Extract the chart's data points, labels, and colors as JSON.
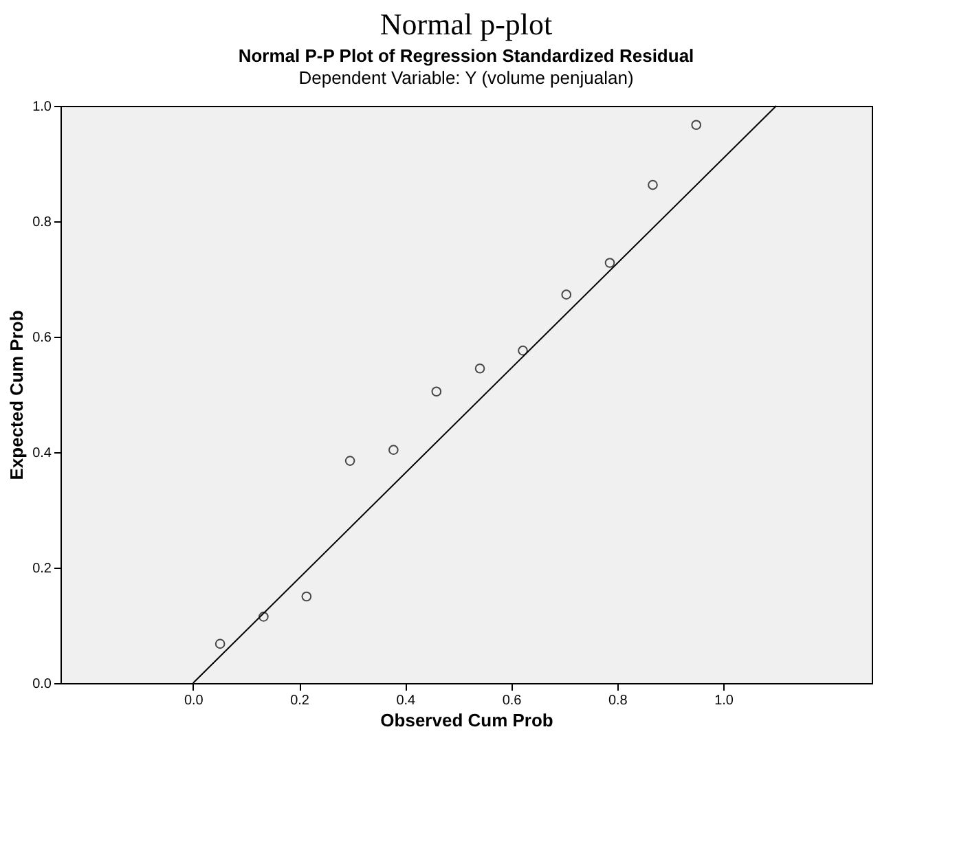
{
  "chart_data": {
    "type": "scatter",
    "title": "Normal P-P Plot of Regression Standardized Residual",
    "subtitle": "Dependent Variable: Y (volume penjualan)",
    "annotations": [
      "Normal p-plot"
    ],
    "xlabel": "Observed Cum Prob",
    "ylabel": "Expected Cum Prob",
    "marker": "circle",
    "grid": false,
    "series": [
      {
        "color": "#000000",
        "x": [
          0.051,
          0.133,
          0.214,
          0.296,
          0.378,
          0.459,
          0.541,
          0.622,
          0.704,
          0.786,
          0.867,
          0.949
        ],
        "values": [
          0.068,
          0.115,
          0.15,
          0.385,
          0.404,
          0.505,
          0.545,
          0.576,
          0.673,
          0.728,
          0.863,
          0.967
        ]
      },
      {
        "type": "line",
        "marker": "none",
        "line_style": "solid",
        "color": "#000000",
        "x": [
          0.0,
          1.1
        ],
        "values": [
          0.0,
          1.0
        ]
      }
    ],
    "xlim": [
      -0.25,
      1.28
    ],
    "ylim": [
      0.0,
      1.0
    ],
    "xticks": [
      {
        "value": 0,
        "label": "0.0"
      },
      {
        "value": 0.2,
        "label": "0.2"
      },
      {
        "value": 0.4,
        "label": "0.4"
      },
      {
        "value": 0.6,
        "label": "0.6"
      },
      {
        "value": 0.8,
        "label": "0.8"
      },
      {
        "value": 1,
        "label": "1.0"
      }
    ],
    "yticks": [
      {
        "value": 0,
        "label": "0.0"
      },
      {
        "value": 0.2,
        "label": "0.2"
      },
      {
        "value": 0.4,
        "label": "0.4"
      },
      {
        "value": 0.6,
        "label": "0.6"
      },
      {
        "value": 0.8,
        "label": "0.8"
      },
      {
        "value": 1,
        "label": "1.0"
      }
    ]
  }
}
